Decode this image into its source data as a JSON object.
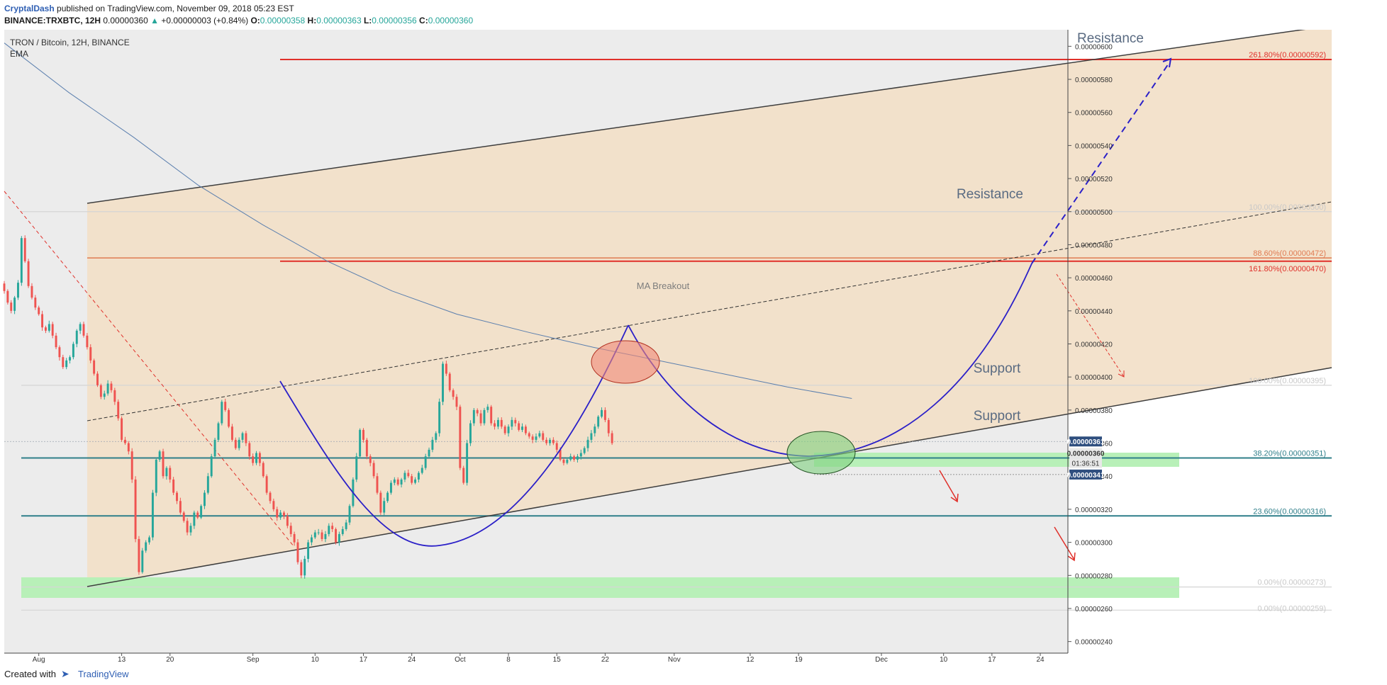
{
  "header": {
    "publisher": "CryptalDash",
    "published_text": "published on TradingView.com, November 09, 2018 05:23 EST",
    "symbol": "BINANCE:TRXBTC, 12H",
    "price": "0.00000360",
    "change_arrow": "▲",
    "change": "+0.00000003 (+0.84%)",
    "o_label": "O:",
    "o_val": "0.00000358",
    "h_label": "H:",
    "h_val": "0.00000363",
    "l_label": "L:",
    "l_val": "0.00000356",
    "c_label": "C:",
    "c_val": "0.00000360"
  },
  "footer": {
    "created_with": "Created with",
    "brand": "TradingView"
  },
  "colors": {
    "channel_fill": "#f2e0c8",
    "support_zone": "#b8f0b8",
    "resistance_line": "#e0302a",
    "support_line": "#2f7f8a",
    "channel_line": "#3d3d3d",
    "arc": "#2b20c8",
    "candle_up": "#26a69a",
    "candle_down": "#ef5350",
    "ema": "#5b7fae",
    "price_tag": "#2f4f7f"
  },
  "chart_data": {
    "type": "candlestick",
    "legend_title": "TRON / Bitcoin, 12H, BINANCE",
    "legend_indicator": "EMA",
    "x_tick_labels": [
      "Aug",
      "13",
      "20",
      "Sep",
      "10",
      "17",
      "24",
      "Oct",
      "8",
      "15",
      "22",
      "Nov",
      "12",
      "19",
      "Dec",
      "10",
      "17",
      "24"
    ],
    "x_tick_dates": [
      "2018-08-01",
      "2018-08-13",
      "2018-08-20",
      "2018-09-01",
      "2018-09-10",
      "2018-09-17",
      "2018-09-24",
      "2018-10-01",
      "2018-10-08",
      "2018-10-15",
      "2018-10-22",
      "2018-11-01",
      "2018-11-12",
      "2018-11-19",
      "2018-12-01",
      "2018-12-10",
      "2018-12-17",
      "2018-12-24"
    ],
    "y_ticks": [
      "0.00000240",
      "0.00000260",
      "0.00000280",
      "0.00000300",
      "0.00000320",
      "0.00000340",
      "0.00000360",
      "0.00000380",
      "0.00000400",
      "0.00000420",
      "0.00000440",
      "0.00000460",
      "0.00000480",
      "0.00000500",
      "0.00000520",
      "0.00000540",
      "0.00000560",
      "0.00000580",
      "0.00000600"
    ],
    "ylim": [
      2.33e-06,
      6.1e-06
    ],
    "xlim": [
      "2018-07-27",
      "2018-12-28"
    ],
    "price_tags": {
      "last": "0.00000361",
      "current": "0.00000360",
      "countdown": "01:36:51",
      "lower": "0.00000341"
    },
    "candles_close": [
      4.52e-06,
      4.45e-06,
      4.4e-06,
      4.48e-06,
      4.57e-06,
      4.84e-06,
      4.7e-06,
      4.55e-06,
      4.48e-06,
      4.42e-06,
      4.38e-06,
      4.3e-06,
      4.28e-06,
      4.32e-06,
      4.25e-06,
      4.18e-06,
      4.12e-06,
      4.06e-06,
      4.1e-06,
      4.12e-06,
      4.2e-06,
      4.28e-06,
      4.32e-06,
      4.25e-06,
      4.18e-06,
      4.1e-06,
      4.02e-06,
      3.95e-06,
      3.88e-06,
      3.9e-06,
      3.96e-06,
      3.92e-06,
      3.85e-06,
      3.75e-06,
      3.62e-06,
      3.6e-06,
      3.55e-06,
      3.38e-06,
      3.02e-06,
      2.82e-06,
      2.95e-06,
      3e-06,
      3.03e-06,
      3.3e-06,
      3.5e-06,
      3.55e-06,
      3.4e-06,
      3.45e-06,
      3.38e-06,
      3.3e-06,
      3.25e-06,
      3.18e-06,
      3.13e-06,
      3.06e-06,
      3.1e-06,
      3.18e-06,
      3.15e-06,
      3.22e-06,
      3.3e-06,
      3.4e-06,
      3.52e-06,
      3.62e-06,
      3.72e-06,
      3.85e-06,
      3.8e-06,
      3.7e-06,
      3.62e-06,
      3.57e-06,
      3.62e-06,
      3.66e-06,
      3.6e-06,
      3.52e-06,
      3.48e-06,
      3.54e-06,
      3.48e-06,
      3.4e-06,
      3.3e-06,
      3.25e-06,
      3.2e-06,
      3.15e-06,
      3.18e-06,
      3.16e-06,
      3.1e-06,
      3.05e-06,
      3e-06,
      2.88e-06,
      2.8e-06,
      2.9e-06,
      3e-06,
      3.03e-06,
      3.06e-06,
      3.06e-06,
      3.02e-06,
      3.05e-06,
      3.1e-06,
      3.08e-06,
      3e-06,
      3.05e-06,
      3.08e-06,
      3.12e-06,
      3.22e-06,
      3.38e-06,
      3.52e-06,
      3.68e-06,
      3.62e-06,
      3.52e-06,
      3.48e-06,
      3.4e-06,
      3.3e-06,
      3.18e-06,
      3.25e-06,
      3.3e-06,
      3.36e-06,
      3.38e-06,
      3.35e-06,
      3.38e-06,
      3.42e-06,
      3.4e-06,
      3.36e-06,
      3.38e-06,
      3.42e-06,
      3.45e-06,
      3.52e-06,
      3.56e-06,
      3.62e-06,
      3.66e-06,
      3.85e-06,
      4.08e-06,
      4.02e-06,
      3.92e-06,
      3.88e-06,
      3.82e-06,
      3.45e-06,
      3.36e-06,
      3.6e-06,
      3.72e-06,
      3.8e-06,
      3.78e-06,
      3.72e-06,
      3.8e-06,
      3.82e-06,
      3.72e-06,
      3.7e-06,
      3.74e-06,
      3.7e-06,
      3.66e-06,
      3.7e-06,
      3.74e-06,
      3.72e-06,
      3.68e-06,
      3.7e-06,
      3.66e-06,
      3.64e-06,
      3.62e-06,
      3.64e-06,
      3.66e-06,
      3.62e-06,
      3.6e-06,
      3.62e-06,
      3.6e-06,
      3.56e-06,
      3.5e-06,
      3.48e-06,
      3.5e-06,
      3.52e-06,
      3.5e-06,
      3.52e-06,
      3.54e-06,
      3.57e-06,
      3.62e-06,
      3.66e-06,
      3.7e-06,
      3.76e-06,
      3.8e-06,
      3.74e-06,
      3.66e-06,
      3.6e-06
    ],
    "candles_start": "2018-07-27",
    "candles_interval_hours": 12,
    "ema": [
      [
        0.0,
        6.02e-06
      ],
      [
        0.09,
        5.72e-06
      ],
      [
        0.18,
        5.45e-06
      ],
      [
        0.27,
        5.16e-06
      ],
      [
        0.36,
        4.92e-06
      ],
      [
        0.45,
        4.7e-06
      ],
      [
        0.54,
        4.52e-06
      ],
      [
        0.63,
        4.38e-06
      ],
      [
        0.73,
        4.27e-06
      ],
      [
        0.82,
        4.18e-06
      ],
      [
        0.91,
        4.1e-06
      ],
      [
        1.0,
        4.02e-06
      ],
      [
        1.09,
        3.94e-06
      ],
      [
        1.18,
        3.87e-06
      ]
    ],
    "ema_x_unit": "fraction of chart data span (2018-07-27 to 2018-11-08)",
    "annotations": [
      {
        "text": "Resistance",
        "kind": "label",
        "price": 5.99e-06,
        "date": "2018-12-01"
      },
      {
        "text": "Resistance",
        "kind": "label",
        "price": 4.76e-06,
        "date": "2018-11-08"
      },
      {
        "text": "Support",
        "kind": "label",
        "price": 3.48e-06,
        "date": "2018-11-20"
      },
      {
        "text": "Support",
        "kind": "label",
        "price": 3.11e-06,
        "date": "2018-11-20"
      },
      {
        "text": "MA Breakout",
        "kind": "label",
        "price": 4.1e-06,
        "date": "2018-10-17"
      }
    ],
    "fib_levels": [
      {
        "label": "261.80%(0.00000592)",
        "price": 5.92e-06,
        "color": "#e0302a"
      },
      {
        "label": "100.00%(0.00000500)",
        "price": 5e-06,
        "color": "#d5d5d5"
      },
      {
        "label": "88.60%(0.00000472)",
        "price": 4.72e-06,
        "color": "#e07b52"
      },
      {
        "label": "161.80%(0.00000470)",
        "price": 4.7e-06,
        "color": "#e0302a"
      },
      {
        "label": "100.00%(0.00000395)",
        "price": 3.95e-06,
        "color": "#d5d5d5"
      },
      {
        "label": "38.20%(0.00000351)",
        "price": 3.51e-06,
        "color": "#2f7f8a"
      },
      {
        "label": "23.60%(0.00000316)",
        "price": 3.16e-06,
        "color": "#2f7f8a"
      },
      {
        "label": "0.00%(0.00000273)",
        "price": 2.73e-06,
        "color": "#d5d5d5"
      },
      {
        "label": "0.00%(0.00000259)",
        "price": 2.59e-06,
        "color": "#d5d5d5"
      }
    ]
  }
}
